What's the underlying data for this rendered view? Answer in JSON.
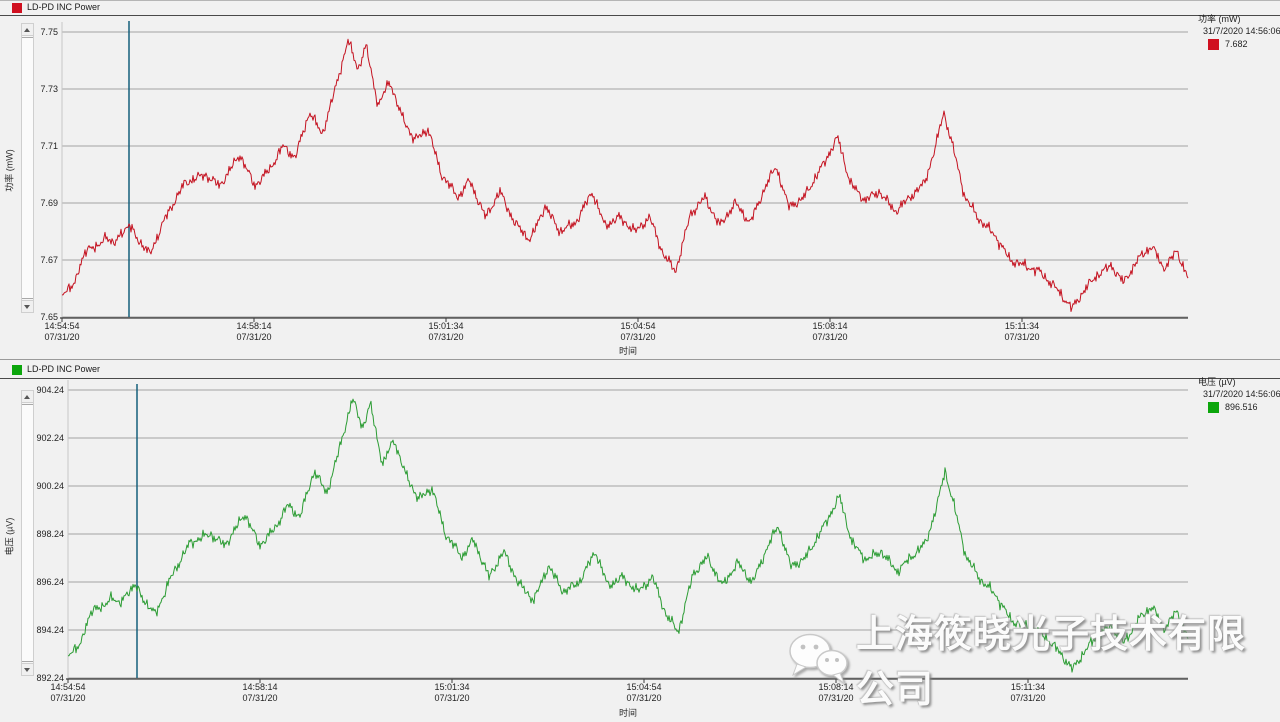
{
  "watermark": {
    "text": "上海筱晓光子技术有限公司",
    "icon": "wechat-icon"
  },
  "chart_data": {
    "type": "line",
    "x_axis": {
      "title": "时间",
      "tick_labels": [
        "14:54:54",
        "14:58:14",
        "15:01:34",
        "15:04:54",
        "15:08:14",
        "15:11:34"
      ],
      "tick_sub_label": "07/31/20",
      "tick_interval_seconds": 200
    },
    "cursor": {
      "time": "14:56:06",
      "color": "#15607c"
    },
    "charts": [
      {
        "header_label": "LD-PD INC Power",
        "swatch_color": "#d01020",
        "series_color": "#c41220",
        "y_axis_title": "功率 (mW)",
        "y_min": 7.65,
        "y_max": 7.75,
        "y_ticks": [
          "7.75",
          "7.73",
          "7.71",
          "7.69",
          "7.67",
          "7.65"
        ],
        "legend": {
          "title": "功率 (mW)",
          "timestamp": "31/7/2020 14:56:06",
          "value": "7.682"
        }
      },
      {
        "header_label": "LD-PD INC Power",
        "swatch_color": "#0ca60c",
        "series_color": "#2b9c33",
        "y_axis_title": "电压 (µV)",
        "y_min": 892.24,
        "y_max": 904.24,
        "y_ticks": [
          "904.24",
          "902.24",
          "900.24",
          "898.24",
          "896.24",
          "894.24",
          "892.24"
        ],
        "legend": {
          "title": "电压 (µV)",
          "timestamp": "31/7/2020 14:56:06",
          "value": "896.516"
        }
      }
    ],
    "shape_keypoints": [
      [
        0.0,
        0.07
      ],
      [
        0.012,
        0.13
      ],
      [
        0.023,
        0.25
      ],
      [
        0.032,
        0.24
      ],
      [
        0.039,
        0.29
      ],
      [
        0.046,
        0.25
      ],
      [
        0.053,
        0.3
      ],
      [
        0.06,
        0.32
      ],
      [
        0.068,
        0.27
      ],
      [
        0.078,
        0.22
      ],
      [
        0.092,
        0.35
      ],
      [
        0.109,
        0.47
      ],
      [
        0.127,
        0.5
      ],
      [
        0.14,
        0.46
      ],
      [
        0.158,
        0.57
      ],
      [
        0.171,
        0.46
      ],
      [
        0.185,
        0.52
      ],
      [
        0.196,
        0.6
      ],
      [
        0.207,
        0.56
      ],
      [
        0.22,
        0.72
      ],
      [
        0.231,
        0.64
      ],
      [
        0.242,
        0.79
      ],
      [
        0.254,
        0.97
      ],
      [
        0.263,
        0.87
      ],
      [
        0.27,
        0.95
      ],
      [
        0.281,
        0.74
      ],
      [
        0.291,
        0.83
      ],
      [
        0.3,
        0.72
      ],
      [
        0.313,
        0.62
      ],
      [
        0.325,
        0.66
      ],
      [
        0.337,
        0.5
      ],
      [
        0.352,
        0.42
      ],
      [
        0.362,
        0.48
      ],
      [
        0.376,
        0.35
      ],
      [
        0.389,
        0.44
      ],
      [
        0.402,
        0.33
      ],
      [
        0.416,
        0.27
      ],
      [
        0.429,
        0.39
      ],
      [
        0.442,
        0.3
      ],
      [
        0.456,
        0.33
      ],
      [
        0.471,
        0.44
      ],
      [
        0.482,
        0.32
      ],
      [
        0.495,
        0.35
      ],
      [
        0.509,
        0.3
      ],
      [
        0.522,
        0.35
      ],
      [
        0.534,
        0.22
      ],
      [
        0.545,
        0.16
      ],
      [
        0.558,
        0.36
      ],
      [
        0.571,
        0.42
      ],
      [
        0.584,
        0.32
      ],
      [
        0.598,
        0.4
      ],
      [
        0.611,
        0.33
      ],
      [
        0.624,
        0.45
      ],
      [
        0.634,
        0.53
      ],
      [
        0.645,
        0.39
      ],
      [
        0.657,
        0.41
      ],
      [
        0.671,
        0.5
      ],
      [
        0.689,
        0.63
      ],
      [
        0.7,
        0.47
      ],
      [
        0.713,
        0.41
      ],
      [
        0.726,
        0.44
      ],
      [
        0.74,
        0.37
      ],
      [
        0.753,
        0.42
      ],
      [
        0.766,
        0.47
      ],
      [
        0.776,
        0.6
      ],
      [
        0.783,
        0.72
      ],
      [
        0.791,
        0.6
      ],
      [
        0.802,
        0.42
      ],
      [
        0.815,
        0.34
      ],
      [
        0.828,
        0.29
      ],
      [
        0.842,
        0.2
      ],
      [
        0.855,
        0.18
      ],
      [
        0.868,
        0.16
      ],
      [
        0.883,
        0.1
      ],
      [
        0.897,
        0.03
      ],
      [
        0.909,
        0.1
      ],
      [
        0.92,
        0.15
      ],
      [
        0.932,
        0.18
      ],
      [
        0.943,
        0.12
      ],
      [
        0.955,
        0.2
      ],
      [
        0.968,
        0.25
      ],
      [
        0.978,
        0.17
      ],
      [
        0.99,
        0.23
      ],
      [
        1.0,
        0.14
      ]
    ]
  }
}
